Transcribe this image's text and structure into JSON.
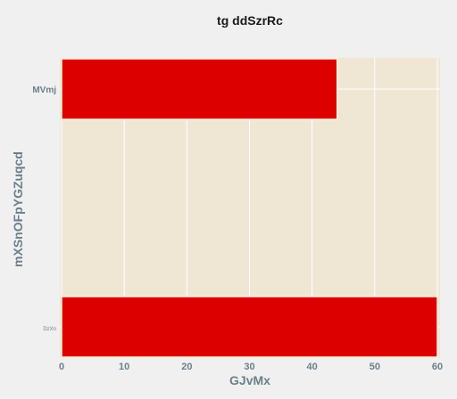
{
  "chart_data": {
    "type": "bar",
    "orientation": "horizontal",
    "title": "tg ddSzrRc",
    "xlabel": "GJvMx",
    "ylabel": "mXSnOFpYGZuqcd",
    "categories": [
      "MVmj",
      "DzXn"
    ],
    "values": [
      44,
      60
    ],
    "xlim": [
      0,
      60
    ],
    "xticks": [
      "0",
      "10",
      "20",
      "30",
      "40",
      "50",
      "60"
    ],
    "grid": true,
    "bar_color": "#dd0000",
    "bar_edge_color": "#f5f5dc",
    "plot_bg": "#efe7d4",
    "page_bg": "#f0f0f0"
  }
}
